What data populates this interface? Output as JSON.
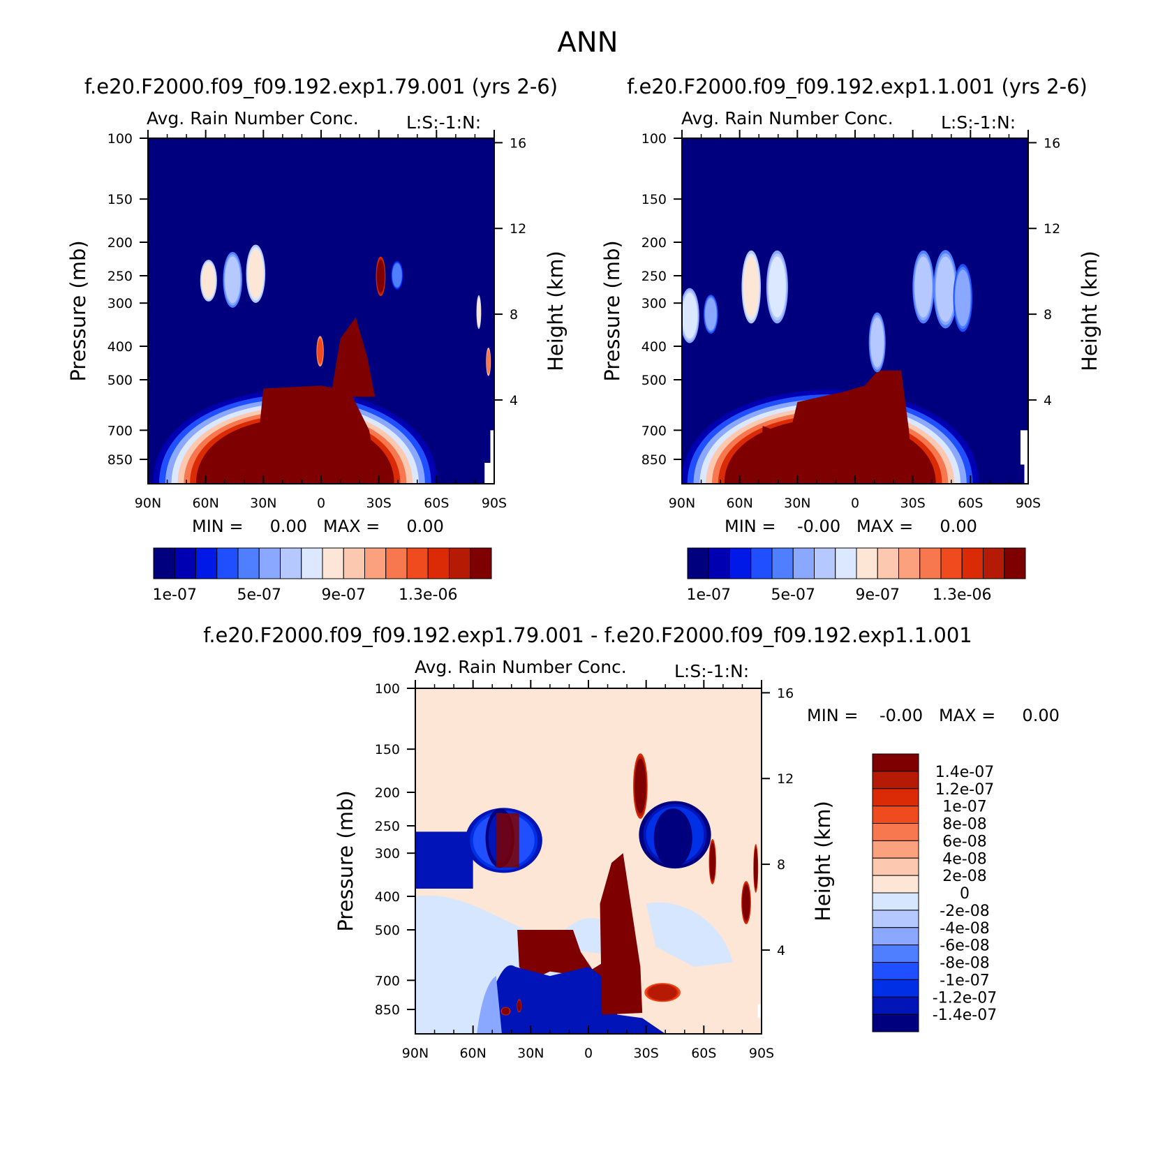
{
  "figure_title": "ANN",
  "colors": {
    "seq": [
      "#00007f",
      "#0000b3",
      "#0019e6",
      "#1f4fff",
      "#4f7fff",
      "#8aa8ff",
      "#b5c8ff",
      "#dce8ff",
      "#fee6d6",
      "#fcc9b0",
      "#fca17e",
      "#f7774f",
      "#f04a1f",
      "#da2b06",
      "#b51a04",
      "#7e0000"
    ],
    "div": [
      "#00007f",
      "#0014b8",
      "#0030e6",
      "#1f4fff",
      "#4f7fff",
      "#8aa8ff",
      "#b5c8ff",
      "#d7e6ff",
      "#fee6d6",
      "#fcc9b0",
      "#fca17e",
      "#f7774f",
      "#f04a1f",
      "#da2b06",
      "#b51a04",
      "#7e0000"
    ]
  },
  "panels": [
    {
      "case_title": "f.e20.F2000.f09_f09.192.exp1.79.001 (yrs 2-6)",
      "var_title": "Avg. Rain Number Conc.",
      "subtitle": "L:S:-1:N:",
      "minmax": "MIN =     0.00   MAX =     0.00",
      "colorbar_labels": [
        "1e-07",
        "5e-07",
        "9e-07",
        "1.3e-06"
      ]
    },
    {
      "case_title": "f.e20.F2000.f09_f09.192.exp1.1.001 (yrs 2-6)",
      "var_title": "Avg. Rain Number Conc.",
      "subtitle": "L:S:-1:N:",
      "minmax": "MIN =    -0.00   MAX =     0.00",
      "colorbar_labels": [
        "1e-07",
        "5e-07",
        "9e-07",
        "1.3e-06"
      ]
    },
    {
      "case_title": "f.e20.F2000.f09_f09.192.exp1.79.001 - f.e20.F2000.f09_f09.192.exp1.1.001",
      "var_title": "Avg. Rain Number Conc.",
      "subtitle": "L:S:-1:N:",
      "minmax": "MIN =    -0.00   MAX =     0.00",
      "colorbar_labels": [
        "1.4e-07",
        "1.2e-07",
        "1e-07",
        "8e-08",
        "6e-08",
        "4e-08",
        "2e-08",
        "0",
        "-2e-08",
        "-4e-08",
        "-6e-08",
        "-8e-08",
        "-1e-07",
        "-1.2e-07",
        "-1.4e-07"
      ]
    }
  ],
  "chart_data": [
    {
      "type": "heatmap",
      "title": "Avg. Rain Number Conc.",
      "xlabel": "",
      "ylabel": "Pressure (mb)",
      "ylabel_right": "Height (km)",
      "x_ticks": [
        "90N",
        "60N",
        "30N",
        "0",
        "30S",
        "60S",
        "90S"
      ],
      "y_ticks": [
        100,
        150,
        200,
        250,
        300,
        400,
        500,
        700,
        850
      ],
      "y_right_ticks": [
        16,
        12,
        8,
        4
      ],
      "ylim": [
        100,
        1000
      ],
      "xlim": [
        90,
        -90
      ],
      "features": [
        {
          "desc": "near-surface max (lower troposphere)",
          "lat": [
            -15,
            50
          ],
          "p_top": 520,
          "level": 15
        },
        {
          "desc": "deep convective peak",
          "lat": [
            -30,
            -5
          ],
          "p_top": 330,
          "level": 15
        },
        {
          "desc": "upper-level patch",
          "lat": [
            30,
            60
          ],
          "p": [
            200,
            320
          ],
          "level": 8
        },
        {
          "desc": "upper-level patch",
          "lat": [
            -30,
            -26
          ],
          "p": [
            220,
            280
          ],
          "level": 15
        }
      ]
    },
    {
      "type": "heatmap",
      "title": "Avg. Rain Number Conc.",
      "xlabel": "",
      "ylabel": "Pressure (mb)",
      "ylabel_right": "Height (km)",
      "x_ticks": [
        "90N",
        "60N",
        "30N",
        "0",
        "30S",
        "60S",
        "90S"
      ],
      "y_ticks": [
        100,
        150,
        200,
        250,
        300,
        400,
        500,
        700,
        850
      ],
      "y_right_ticks": [
        16,
        12,
        8,
        4
      ],
      "ylim": [
        100,
        1000
      ],
      "xlim": [
        90,
        -90
      ],
      "features": [
        {
          "desc": "near-surface max (lower troposphere)",
          "lat": [
            -25,
            50
          ],
          "p_top": 500,
          "level": 15
        },
        {
          "desc": "upper-level patches",
          "lat": [
            15,
            75
          ],
          "p": [
            220,
            380
          ],
          "level": 7
        },
        {
          "desc": "upper-level patches",
          "lat": [
            -60,
            -30
          ],
          "p": [
            220,
            350
          ],
          "level": 7
        }
      ]
    },
    {
      "type": "heatmap",
      "title": "Avg. Rain Number Conc.",
      "xlabel": "",
      "ylabel": "Pressure (mb)",
      "ylabel_right": "Height (km)",
      "x_ticks": [
        "90N",
        "60N",
        "30N",
        "0",
        "30S",
        "60S",
        "90S"
      ],
      "y_ticks": [
        100,
        150,
        200,
        250,
        300,
        400,
        500,
        700,
        850
      ],
      "y_right_ticks": [
        16,
        12,
        8,
        4
      ],
      "ylim": [
        100,
        1000
      ],
      "xlim": [
        90,
        -90
      ],
      "levels": [
        -1.4e-07,
        -1.2e-07,
        -1e-07,
        -8e-08,
        -6e-08,
        -4e-08,
        -2e-08,
        0,
        2e-08,
        4e-08,
        6e-08,
        8e-08,
        1e-07,
        1.2e-07,
        1.4e-07
      ],
      "features": [
        {
          "desc": "positive difference band",
          "lat": [
            5,
            35
          ],
          "p": [
            500,
            620
          ],
          "level": 15
        },
        {
          "desc": "negative difference, lower troposphere",
          "lat": [
            -30,
            40
          ],
          "p": [
            620,
            1000
          ],
          "level": 0
        },
        {
          "desc": "positive convective column",
          "lat": [
            -28,
            -5
          ],
          "p": [
            280,
            900
          ],
          "level": 15
        },
        {
          "desc": "negative upper-level band",
          "lat": [
            25,
            90
          ],
          "p": [
            250,
            380
          ],
          "level": 1
        },
        {
          "desc": "negative upper-level band",
          "lat": [
            -60,
            -30
          ],
          "p": [
            230,
            330
          ],
          "level": 1
        }
      ]
    }
  ]
}
